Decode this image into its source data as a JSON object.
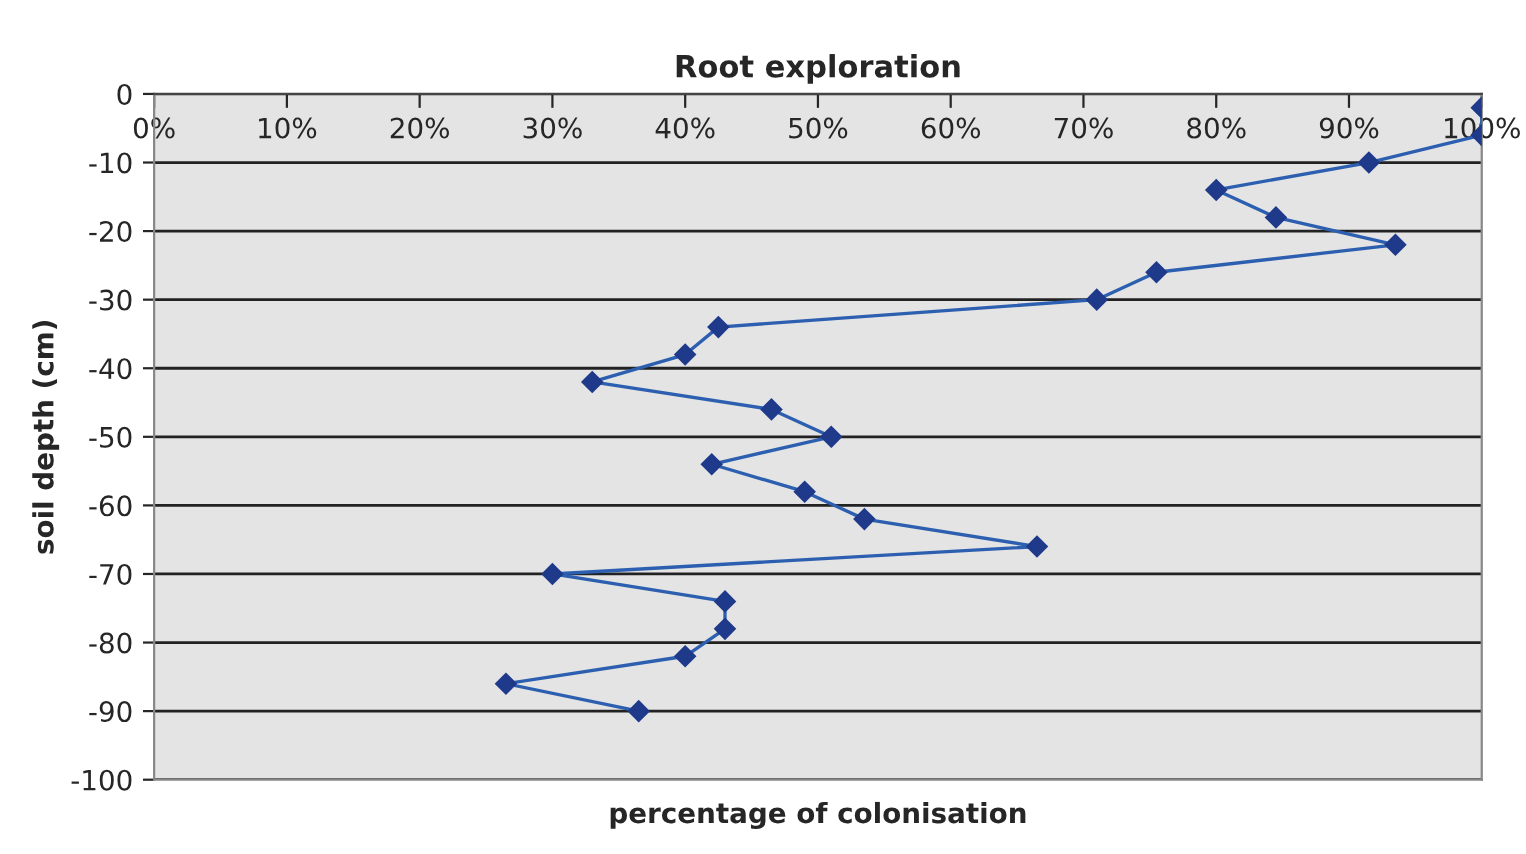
{
  "chart_data": {
    "type": "line",
    "title": "Root exploration",
    "xlabel": "percentage of colonisation",
    "ylabel": "soil depth (cm)",
    "series": [
      {
        "color": "#2d5fb0",
        "x": [
          100,
          100,
          91.5,
          80,
          84.5,
          93.5,
          75.5,
          71,
          42.5,
          40,
          33,
          46.5,
          51,
          42,
          49,
          53.5,
          66.5,
          30,
          43,
          43,
          40,
          26.5,
          36.5
        ],
        "values": [
          -2,
          -6,
          -10,
          -14,
          -18,
          -22,
          -26,
          -30,
          -34,
          -38,
          -42,
          -46,
          -50,
          -54,
          -58,
          -62,
          -66,
          -70,
          -74,
          -78,
          -82,
          -86,
          -90
        ]
      }
    ],
    "xlim": [
      0,
      100
    ],
    "xticks": [
      {
        "value": 0,
        "label": "0%"
      },
      {
        "value": 10,
        "label": "10%"
      },
      {
        "value": 20,
        "label": "20%"
      },
      {
        "value": 30,
        "label": "30%"
      },
      {
        "value": 40,
        "label": "40%"
      },
      {
        "value": 50,
        "label": "50%"
      },
      {
        "value": 60,
        "label": "60%"
      },
      {
        "value": 70,
        "label": "70%"
      },
      {
        "value": 80,
        "label": "80%"
      },
      {
        "value": 90,
        "label": "90%"
      },
      {
        "value": 100,
        "label": "100%"
      }
    ],
    "ylim": [
      -100,
      0
    ],
    "yticks": [
      -100,
      -90,
      -80,
      -70,
      -60,
      -50,
      -40,
      -30,
      -20,
      -10,
      0
    ],
    "grid": "y",
    "marker": "diamond",
    "line_style": "solid",
    "legend": false
  }
}
